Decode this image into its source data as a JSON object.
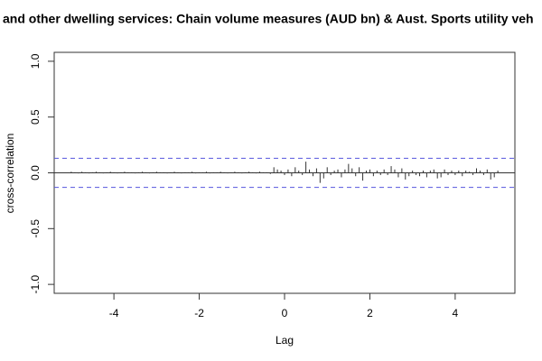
{
  "chart_data": {
    "type": "ccf",
    "title": "and other dwelling services: Chain volume measures (AUD bn) & Aust. Sports utility veh",
    "x_label": "Lag",
    "y_label": "cross-correlation",
    "x": [
      -5,
      -4.917,
      -4.833,
      -4.75,
      -4.667,
      -4.583,
      -4.5,
      -4.417,
      -4.333,
      -4.25,
      -4.167,
      -4.083,
      -4,
      -3.917,
      -3.833,
      -3.75,
      -3.667,
      -3.583,
      -3.5,
      -3.417,
      -3.333,
      -3.25,
      -3.167,
      -3.083,
      -3,
      -2.917,
      -2.833,
      -2.75,
      -2.667,
      -2.583,
      -2.5,
      -2.417,
      -2.333,
      -2.25,
      -2.167,
      -2.083,
      -2,
      -1.917,
      -1.833,
      -1.75,
      -1.667,
      -1.583,
      -1.5,
      -1.417,
      -1.333,
      -1.25,
      -1.167,
      -1.083,
      -1,
      -0.917,
      -0.833,
      -0.75,
      -0.667,
      -0.583,
      -0.5,
      -0.417,
      -0.333,
      -0.25,
      -0.167,
      -0.083,
      0,
      0.083,
      0.167,
      0.25,
      0.333,
      0.417,
      0.5,
      0.583,
      0.667,
      0.75,
      0.833,
      0.917,
      1,
      1.083,
      1.167,
      1.25,
      1.333,
      1.417,
      1.5,
      1.583,
      1.667,
      1.75,
      1.833,
      1.917,
      2,
      2.083,
      2.167,
      2.25,
      2.333,
      2.417,
      2.5,
      2.583,
      2.667,
      2.75,
      2.833,
      2.917,
      3,
      3.083,
      3.167,
      3.25,
      3.333,
      3.417,
      3.5,
      3.583,
      3.667,
      3.75,
      3.833,
      3.917,
      4,
      4.083,
      4.167,
      4.25,
      4.333,
      4.417,
      4.5,
      4.583,
      4.667,
      4.75,
      4.833,
      4.917,
      5
    ],
    "values": [
      0.01,
      0.005,
      -0.005,
      0.01,
      0.005,
      -0.005,
      0.005,
      0.01,
      0.005,
      -0.005,
      0.005,
      0.01,
      0.005,
      -0.005,
      0.005,
      0.01,
      0.005,
      0.005,
      -0.005,
      0.005,
      0.01,
      0.005,
      -0.005,
      0.005,
      0.01,
      0.005,
      0.005,
      -0.005,
      0.005,
      0.01,
      0.005,
      -0.005,
      0.005,
      0.005,
      0.01,
      -0.005,
      0.005,
      0.005,
      0.01,
      -0.005,
      0.005,
      0.005,
      0.01,
      0.005,
      -0.005,
      0.005,
      0.01,
      0.005,
      -0.005,
      0.005,
      0.01,
      0.005,
      -0.005,
      0.01,
      0.005,
      0.005,
      -0.01,
      0.05,
      0.03,
      0.02,
      -0.02,
      0.03,
      -0.03,
      0.05,
      0.02,
      -0.02,
      0.1,
      0.03,
      -0.03,
      0.04,
      -0.09,
      -0.05,
      0.05,
      -0.02,
      0.02,
      0.03,
      -0.04,
      0.03,
      0.08,
      0.04,
      -0.03,
      0.05,
      -0.07,
      0.02,
      0.03,
      -0.03,
      0.02,
      -0.02,
      0.03,
      -0.02,
      0.06,
      0.03,
      -0.04,
      0.04,
      -0.06,
      -0.03,
      0.02,
      -0.02,
      -0.03,
      0.02,
      -0.04,
      0.02,
      0.03,
      -0.05,
      -0.04,
      0.03,
      -0.02,
      0.02,
      -0.02,
      0.02,
      -0.03,
      0.02,
      0.01,
      -0.02,
      0.04,
      0.02,
      -0.02,
      0.03,
      -0.06,
      -0.04,
      0.02
    ],
    "color": "#333333",
    "ci": 0.13,
    "ci_color": "#5555dd",
    "xlim": [
      -5.4,
      5.4
    ],
    "xticks": [
      -4,
      -2,
      0,
      2,
      4
    ],
    "ylim": [
      -1.08,
      1.08
    ],
    "yticks": [
      {
        "value": -1,
        "label": "-1.0"
      },
      {
        "value": -0.5,
        "label": "-0.5"
      },
      {
        "value": 0,
        "label": "0.0"
      },
      {
        "value": 0.5,
        "label": "0.5"
      },
      {
        "value": 1,
        "label": "1.0"
      }
    ]
  }
}
